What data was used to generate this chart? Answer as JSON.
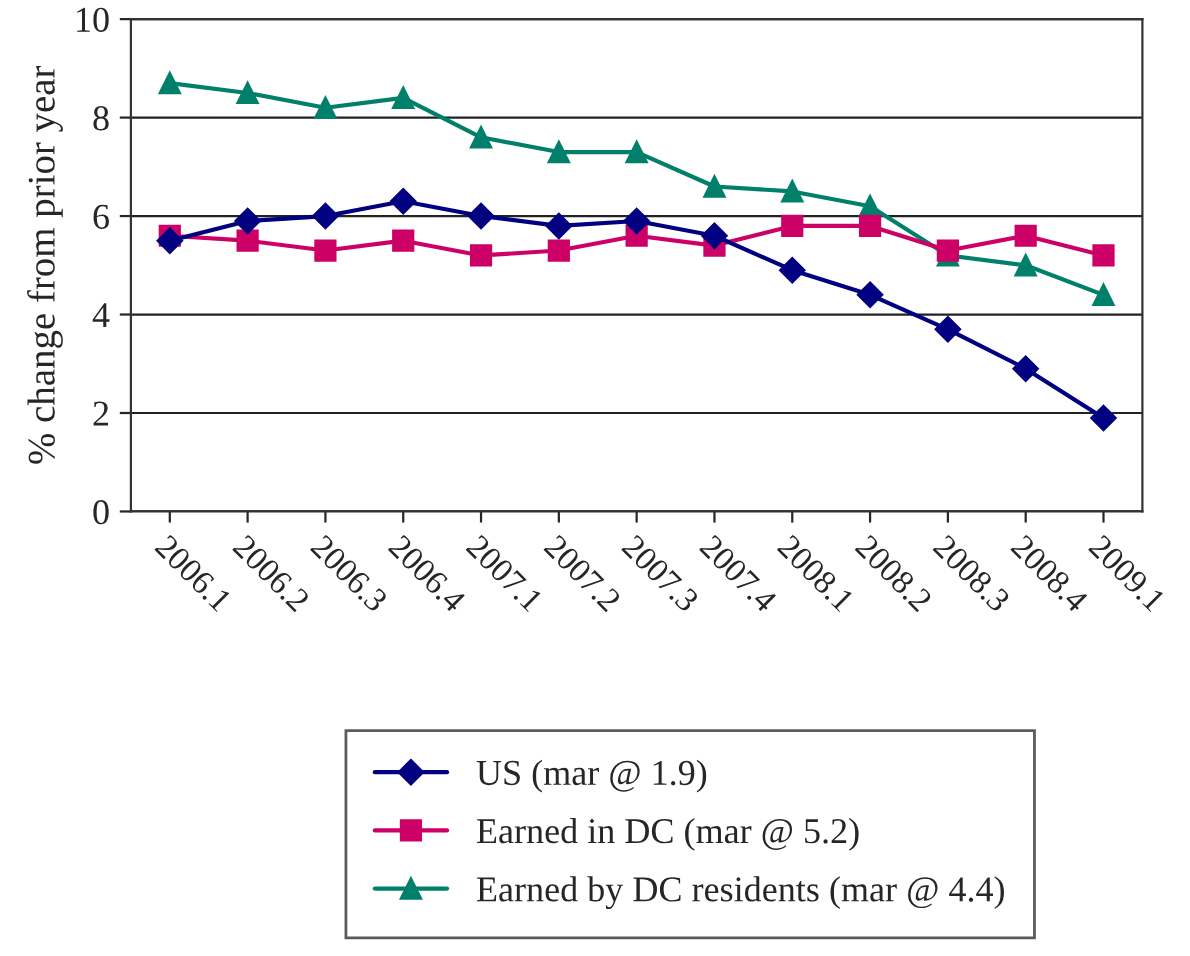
{
  "chart_data": {
    "type": "line",
    "ylabel": "% change from prior year",
    "categories": [
      "2006.1",
      "2006.2",
      "2006.3",
      "2006.4",
      "2007.1",
      "2007.2",
      "2007.3",
      "2007.4",
      "2008.1",
      "2008.2",
      "2008.3",
      "2008.4",
      "2009.1"
    ],
    "series": [
      {
        "name": "US (mar @ 1.9)",
        "color": "#000080",
        "marker": "diamond",
        "values": [
          5.5,
          5.9,
          6.0,
          6.3,
          6.0,
          5.8,
          5.9,
          5.6,
          4.9,
          4.4,
          3.7,
          2.9,
          1.9
        ]
      },
      {
        "name": "Earned in DC (mar @ 5.2)",
        "color": "#cc0066",
        "marker": "square",
        "values": [
          5.6,
          5.5,
          5.3,
          5.5,
          5.2,
          5.3,
          5.6,
          5.4,
          5.8,
          5.8,
          5.3,
          5.6,
          5.2
        ]
      },
      {
        "name": "Earned by DC residents (mar @ 4.4)",
        "color": "#00806a",
        "marker": "triangle",
        "values": [
          8.7,
          8.5,
          8.2,
          8.4,
          7.6,
          7.3,
          7.3,
          6.6,
          6.5,
          6.2,
          5.2,
          5.0,
          4.4
        ]
      }
    ],
    "ylim": [
      0,
      10
    ],
    "yticks": [
      0,
      2,
      4,
      6,
      8,
      10
    ],
    "grid": "y",
    "legend": "bottom",
    "line_style": "solid"
  }
}
